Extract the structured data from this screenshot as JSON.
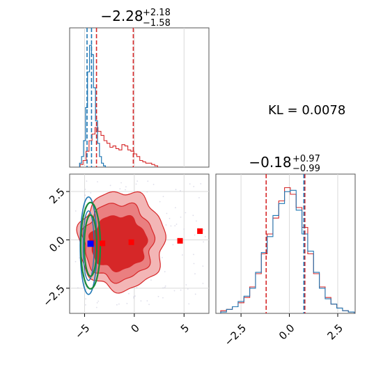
{
  "chart_data": {
    "type": "corner",
    "annotation": "KL = 0.0078",
    "panels": {
      "hist_x": {
        "title_main": "−2.28",
        "title_sup": "+2.18",
        "title_sub": "−1.58",
        "xlim": [
          -6.5,
          7.5
        ],
        "quantile_lines_red": [
          -3.8,
          -0.1
        ],
        "quantile_lines_blue": [
          -4.75,
          -4.3
        ],
        "red_hist": {
          "x": [
            -5.3,
            -5.0,
            -4.7,
            -4.4,
            -4.1,
            -3.8,
            -3.5,
            -3.2,
            -2.9,
            -2.6,
            -2.3,
            -2.0,
            -1.7,
            -1.4,
            -1.1,
            -0.8,
            -0.5,
            -0.2,
            0.1,
            0.4,
            0.7,
            1.0,
            1.3,
            1.6,
            1.9,
            2.2
          ],
          "y": [
            0.02,
            0.05,
            0.12,
            0.2,
            0.25,
            0.3,
            0.27,
            0.24,
            0.2,
            0.18,
            0.15,
            0.16,
            0.14,
            0.13,
            0.17,
            0.16,
            0.13,
            0.12,
            0.1,
            0.08,
            0.05,
            0.04,
            0.03,
            0.03,
            0.02,
            0.01
          ]
        },
        "blue_hist": {
          "x": [
            -5.4,
            -5.2,
            -5.0,
            -4.8,
            -4.6,
            -4.4,
            -4.2,
            -4.0,
            -3.8,
            -3.6,
            -3.4,
            -3.2,
            -3.0
          ],
          "y": [
            0.03,
            0.08,
            0.2,
            0.45,
            0.72,
            0.92,
            0.85,
            0.6,
            0.35,
            0.18,
            0.08,
            0.03,
            0.01
          ]
        }
      },
      "hist_y": {
        "title_main": "−0.18",
        "title_sup": "+0.97",
        "title_sub": "−0.99",
        "xlim": [
          -3.8,
          3.4
        ],
        "xticks": [
          "−2.5",
          "0.0",
          "2.5"
        ],
        "quantile_lines_red": [
          -1.2,
          0.8
        ],
        "quantile_lines_blue": [
          0.75
        ],
        "red_hist": {
          "x": [
            -3.4,
            -3.1,
            -2.8,
            -2.5,
            -2.2,
            -1.9,
            -1.6,
            -1.3,
            -1.0,
            -0.7,
            -0.4,
            -0.1,
            0.2,
            0.5,
            0.8,
            1.1,
            1.4,
            1.7,
            2.0,
            2.3,
            2.6,
            2.9,
            3.2
          ],
          "y": [
            0.02,
            0.03,
            0.05,
            0.08,
            0.12,
            0.2,
            0.3,
            0.45,
            0.6,
            0.72,
            0.85,
            0.95,
            0.9,
            0.8,
            0.65,
            0.45,
            0.3,
            0.2,
            0.12,
            0.07,
            0.04,
            0.02,
            0.01
          ]
        },
        "blue_hist": {
          "x": [
            -3.4,
            -3.1,
            -2.8,
            -2.5,
            -2.2,
            -1.9,
            -1.6,
            -1.3,
            -1.0,
            -0.7,
            -0.4,
            -0.1,
            0.2,
            0.5,
            0.8,
            1.1,
            1.4,
            1.7,
            2.0,
            2.3,
            2.6,
            2.9,
            3.2
          ],
          "y": [
            0.01,
            0.03,
            0.05,
            0.09,
            0.13,
            0.19,
            0.31,
            0.46,
            0.58,
            0.74,
            0.83,
            0.92,
            0.93,
            0.78,
            0.6,
            0.47,
            0.31,
            0.19,
            0.11,
            0.07,
            0.04,
            0.02,
            0.01
          ]
        }
      },
      "scatter": {
        "xlim": [
          -6.5,
          7.5
        ],
        "ylim": [
          -3.8,
          3.4
        ],
        "xticks": [
          "−5",
          "0",
          "5"
        ],
        "yticks": [
          "2.5",
          "0.0",
          "−2.5"
        ],
        "red_squares": [
          {
            "x": -4.3,
            "y": -0.15
          },
          {
            "x": -3.2,
            "y": -0.18
          },
          {
            "x": -0.3,
            "y": -0.12
          },
          {
            "x": 4.6,
            "y": -0.05
          },
          {
            "x": 6.6,
            "y": 0.45
          }
        ],
        "blue_square": {
          "x": -4.4,
          "y": -0.2
        }
      }
    }
  }
}
